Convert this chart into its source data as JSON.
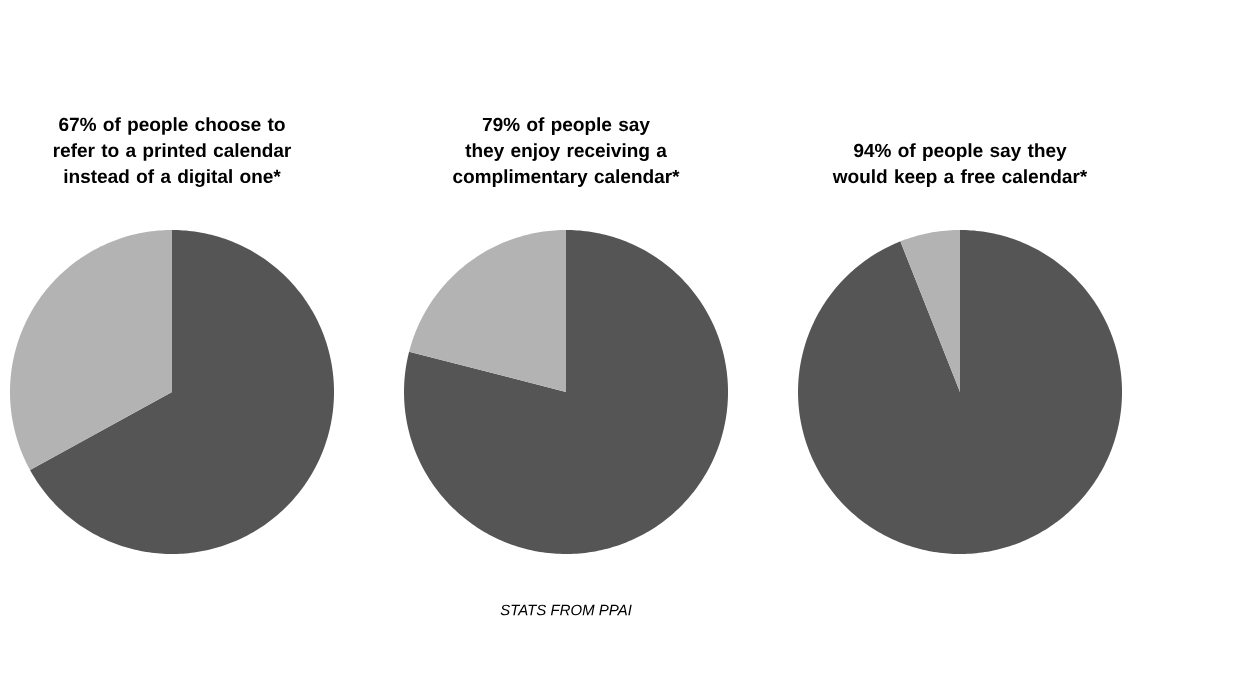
{
  "chart_data": [
    {
      "type": "pie",
      "title": "67% of people choose to refer to a printed calendar instead of a digital one*",
      "categories": [
        null,
        null
      ],
      "values": [
        67,
        33
      ],
      "colors": [
        "#555555",
        "#b3b3b3"
      ]
    },
    {
      "type": "pie",
      "title": "79% of people say they enjoy receiving a complimentary calendar*",
      "categories": [
        null,
        null
      ],
      "values": [
        79,
        21
      ],
      "colors": [
        "#555555",
        "#b3b3b3"
      ],
      "annotations": [
        "STATS FROM PPAI"
      ]
    },
    {
      "type": "pie",
      "title": "94% of people say they would keep a free calendar*",
      "categories": [
        null,
        null
      ],
      "values": [
        94,
        6
      ],
      "colors": [
        "#555555",
        "#b3b3b3"
      ]
    }
  ]
}
